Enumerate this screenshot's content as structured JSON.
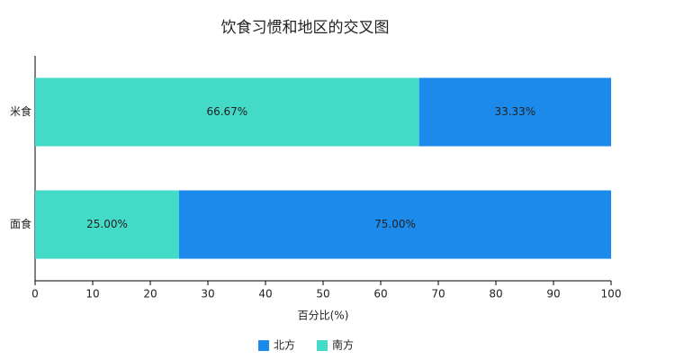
{
  "chart_data": {
    "type": "stacked-barh",
    "title": "饮食习惯和地区的交叉图",
    "categories": [
      "米食",
      "面食"
    ],
    "series": [
      {
        "name": "南方",
        "color": "#43dac8",
        "values": [
          66.67,
          25.0
        ],
        "value_labels": [
          "66.67%",
          "25.00%"
        ]
      },
      {
        "name": "北方",
        "color": "#1c8aea",
        "values": [
          33.33,
          75.0
        ],
        "value_labels": [
          "33.33%",
          "75.00%"
        ]
      }
    ],
    "xlim": [
      0,
      100
    ],
    "xticks": [
      0,
      10,
      20,
      30,
      40,
      50,
      60,
      70,
      80,
      90,
      100
    ],
    "xlabel": "百分比(%)",
    "grid": false
  }
}
